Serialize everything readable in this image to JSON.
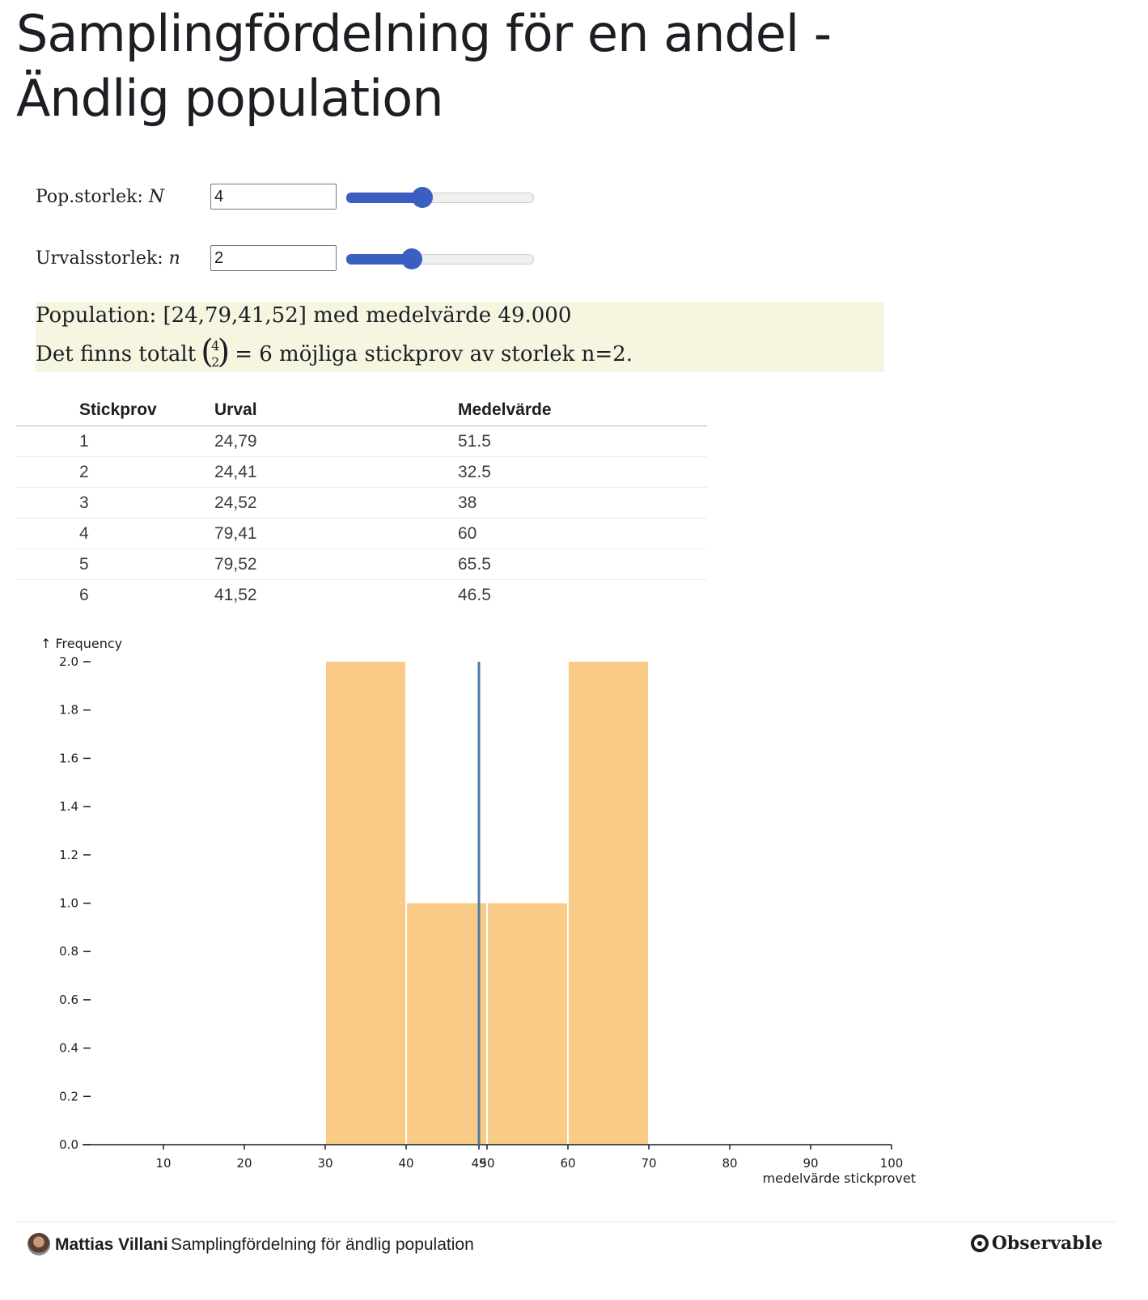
{
  "page": {
    "title": "Samplingfördelning för en andel - Ändlig population"
  },
  "controls": {
    "population_size": {
      "label": "Pop.storlek: ",
      "symbol": "N",
      "value": "4",
      "slider_fraction": 0.41
    },
    "sample_size": {
      "label": "Urvalsstorlek: ",
      "symbol": "n",
      "value": "2",
      "slider_fraction": 0.35
    }
  },
  "info": {
    "line1": "Population: [24,79,41,52] med medelvärde 49.000",
    "line2_prefix": "Det finns totalt",
    "binom_top": "4",
    "binom_bottom": "2",
    "line2_suffix": "= 6 möjliga stickprov av storlek n=2."
  },
  "table": {
    "headers": [
      "Stickprov",
      "Urval",
      "Medelvärde"
    ],
    "rows": [
      [
        "1",
        "24,79",
        "51.5"
      ],
      [
        "2",
        "24,41",
        "32.5"
      ],
      [
        "3",
        "24,52",
        "38"
      ],
      [
        "4",
        "79,41",
        "60"
      ],
      [
        "5",
        "79,52",
        "65.5"
      ],
      [
        "6",
        "41,52",
        "46.5"
      ]
    ]
  },
  "chart_data": {
    "type": "bar",
    "bins": [
      {
        "x0": 30,
        "x1": 40,
        "count": 2
      },
      {
        "x0": 40,
        "x1": 50,
        "count": 1
      },
      {
        "x0": 50,
        "x1": 60,
        "count": 1
      },
      {
        "x0": 60,
        "x1": 70,
        "count": 2
      }
    ],
    "mean_rule": {
      "x": 49,
      "label": "49"
    },
    "xlabel": "medelvärde stickprovet",
    "ylabel": "↑ Frequency",
    "xlim": [
      0,
      100
    ],
    "ylim": [
      0,
      2
    ],
    "xticks": [
      10,
      20,
      30,
      40,
      50,
      60,
      70,
      80,
      90,
      100
    ],
    "yticks": [
      "0.0",
      "0.2",
      "0.4",
      "0.6",
      "0.8",
      "1.0",
      "1.2",
      "1.4",
      "1.6",
      "1.8",
      "2.0"
    ],
    "bar_color": "#f9cb86",
    "rule_color": "#4e79a7",
    "grid": false
  },
  "footer": {
    "author": "Mattias Villani",
    "notebook_title": "Samplingfördelning för ändlig population",
    "brand": "Observable"
  }
}
